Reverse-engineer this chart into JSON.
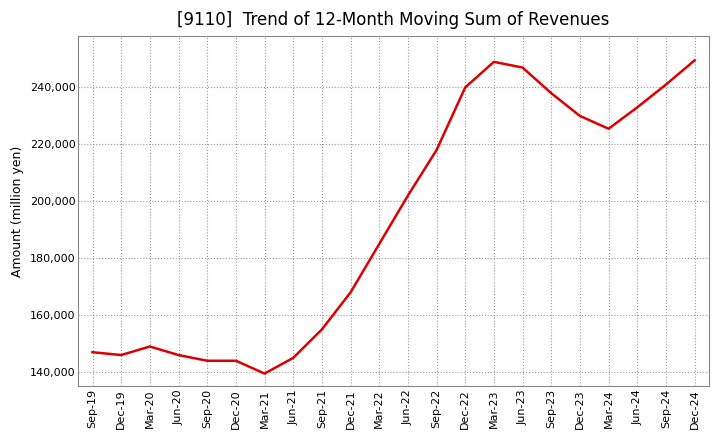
{
  "title": "[9110]  Trend of 12-Month Moving Sum of Revenues",
  "ylabel": "Amount (million yen)",
  "line_color": "#dd0000",
  "background_color": "#ffffff",
  "plot_background": "#ffffff",
  "grid_color": "#999999",
  "title_fontsize": 12,
  "axis_fontsize": 9,
  "tick_fontsize": 8,
  "ylim": [
    135000,
    258000
  ],
  "yticks": [
    140000,
    160000,
    180000,
    200000,
    220000,
    240000
  ],
  "labels": [
    "Sep-19",
    "Dec-19",
    "Mar-20",
    "Jun-20",
    "Sep-20",
    "Dec-20",
    "Mar-21",
    "Jun-21",
    "Sep-21",
    "Dec-21",
    "Mar-22",
    "Jun-22",
    "Sep-22",
    "Dec-22",
    "Mar-23",
    "Jun-23",
    "Sep-23",
    "Dec-23",
    "Mar-24",
    "Jun-24",
    "Sep-24",
    "Dec-24"
  ],
  "values": [
    147000,
    146000,
    149000,
    146000,
    144000,
    144000,
    139500,
    145000,
    155000,
    168000,
    185000,
    202000,
    218000,
    240000,
    249000,
    247000,
    238000,
    230000,
    225500,
    233000,
    241000,
    249500
  ]
}
